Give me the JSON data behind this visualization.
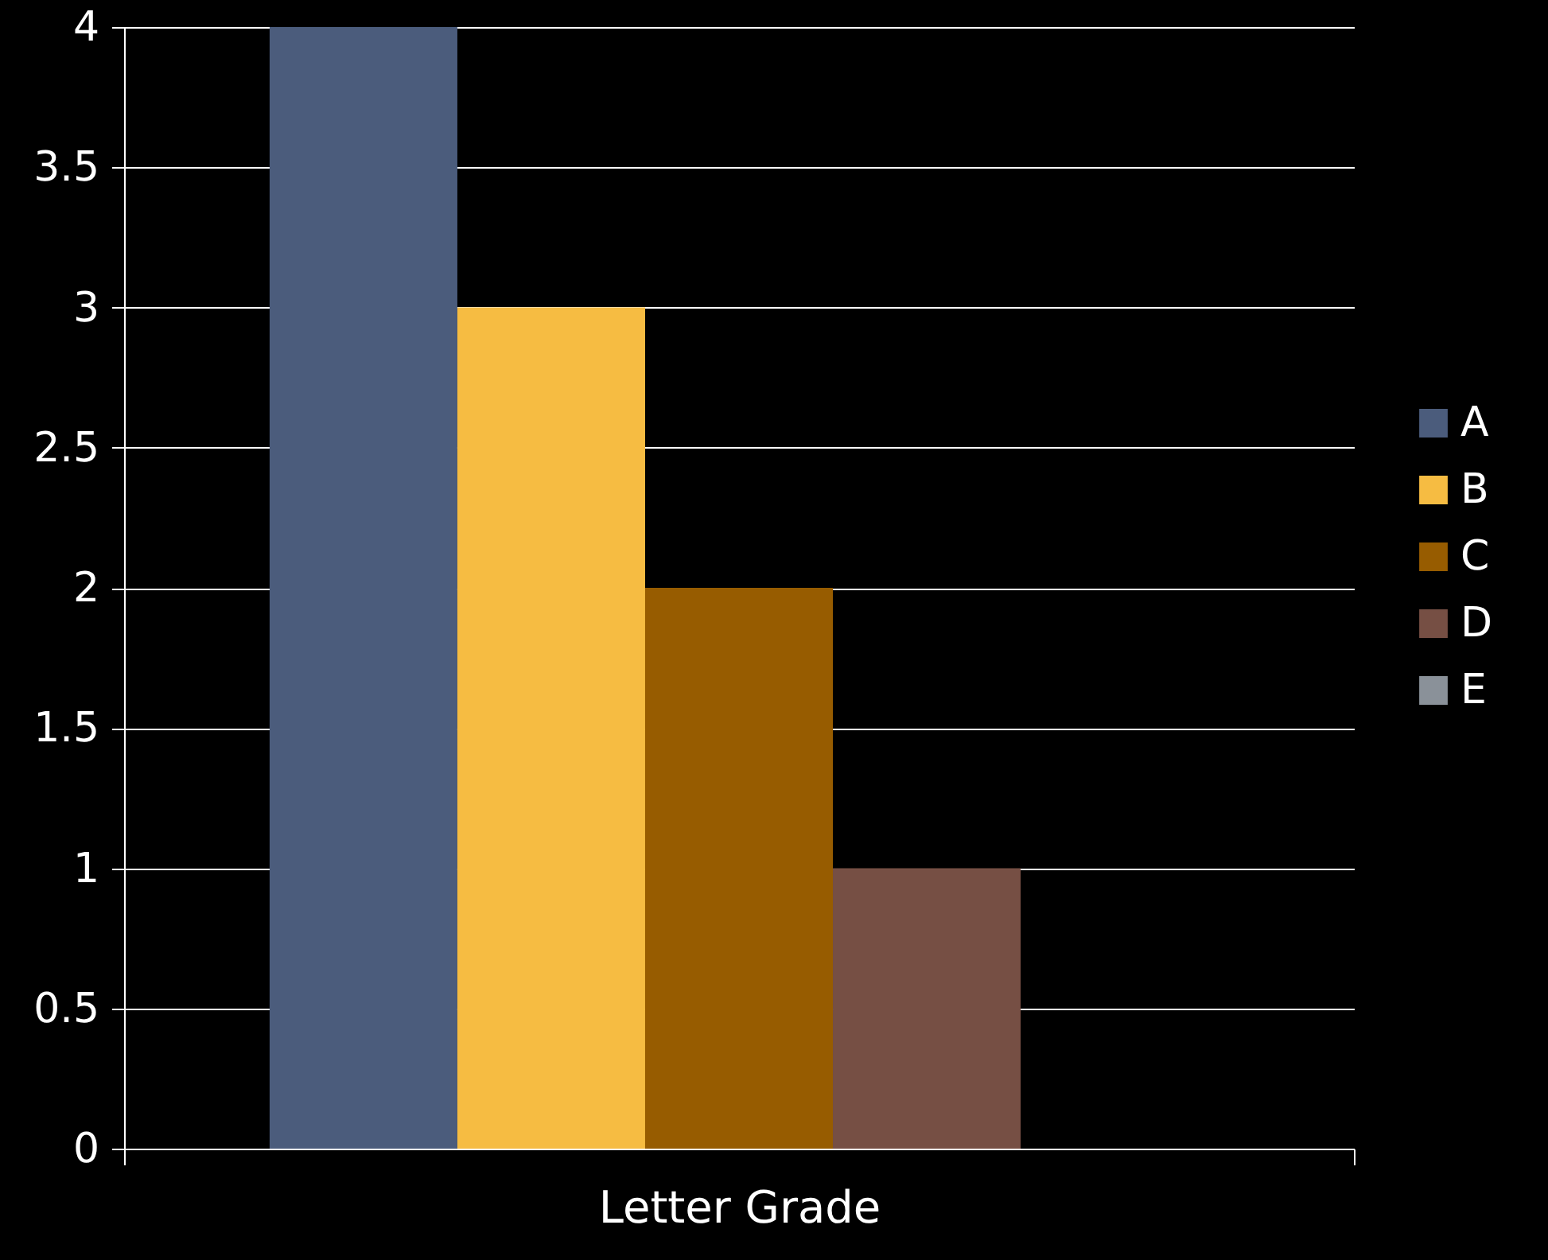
{
  "chart_data": {
    "type": "bar",
    "categories": [
      "Letter Grade"
    ],
    "series": [
      {
        "name": "A",
        "color": "#4b5c7c",
        "values": [
          4
        ]
      },
      {
        "name": "B",
        "color": "#f6bc42",
        "values": [
          3
        ]
      },
      {
        "name": "C",
        "color": "#975c00",
        "values": [
          2
        ]
      },
      {
        "name": "D",
        "color": "#764f44",
        "values": [
          1
        ]
      },
      {
        "name": "E",
        "color": "#8a9199",
        "values": [
          0
        ]
      }
    ],
    "ylim": [
      0,
      4
    ],
    "yticks": [
      0,
      0.5,
      1,
      1.5,
      2,
      2.5,
      3,
      3.5,
      4
    ],
    "grid": "y",
    "legend": "right"
  }
}
